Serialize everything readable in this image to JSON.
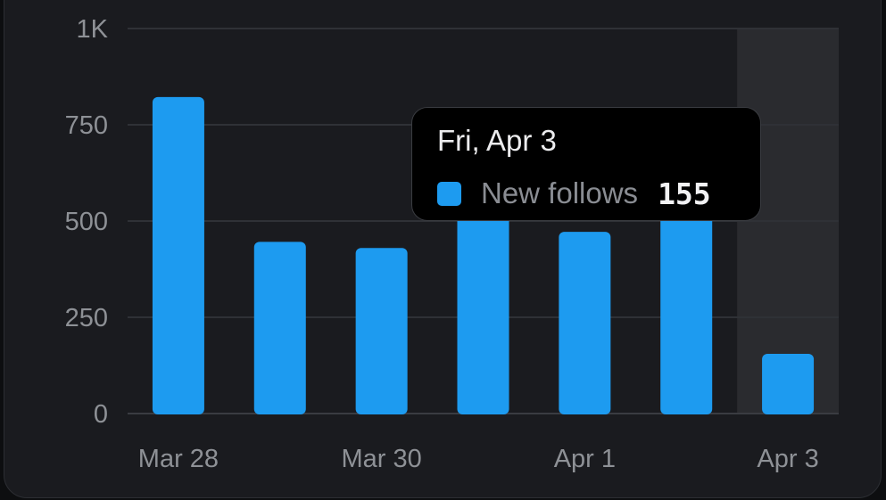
{
  "colors": {
    "bar": "#1d9bf0",
    "grid": "#2f3136",
    "baseline": "#3a3c42",
    "tick_text": "#8e9196",
    "highlight_column": "#2a2b2f"
  },
  "chart_data": {
    "type": "bar",
    "categories": [
      "Mar 28",
      "Mar 29",
      "Mar 30",
      "Mar 31",
      "Apr 1",
      "Apr 2",
      "Apr 3"
    ],
    "series": [
      {
        "name": "New follows",
        "values": [
          822,
          446,
          430,
          620,
          472,
          610,
          155
        ]
      }
    ],
    "ylim": [
      0,
      1000
    ],
    "y_ticks": [
      0,
      250,
      500,
      750,
      1000
    ],
    "y_tick_labels": [
      "0",
      "250",
      "500",
      "750",
      "1K"
    ],
    "x_tick_labels": [
      "Mar 28",
      "",
      "Mar 30",
      "",
      "Apr 1",
      "",
      "Apr 3"
    ],
    "grid": true,
    "highlighted_category": "Apr 3"
  },
  "tooltip": {
    "title": "Fri, Apr 3",
    "series_label": "New follows",
    "value": "155"
  }
}
